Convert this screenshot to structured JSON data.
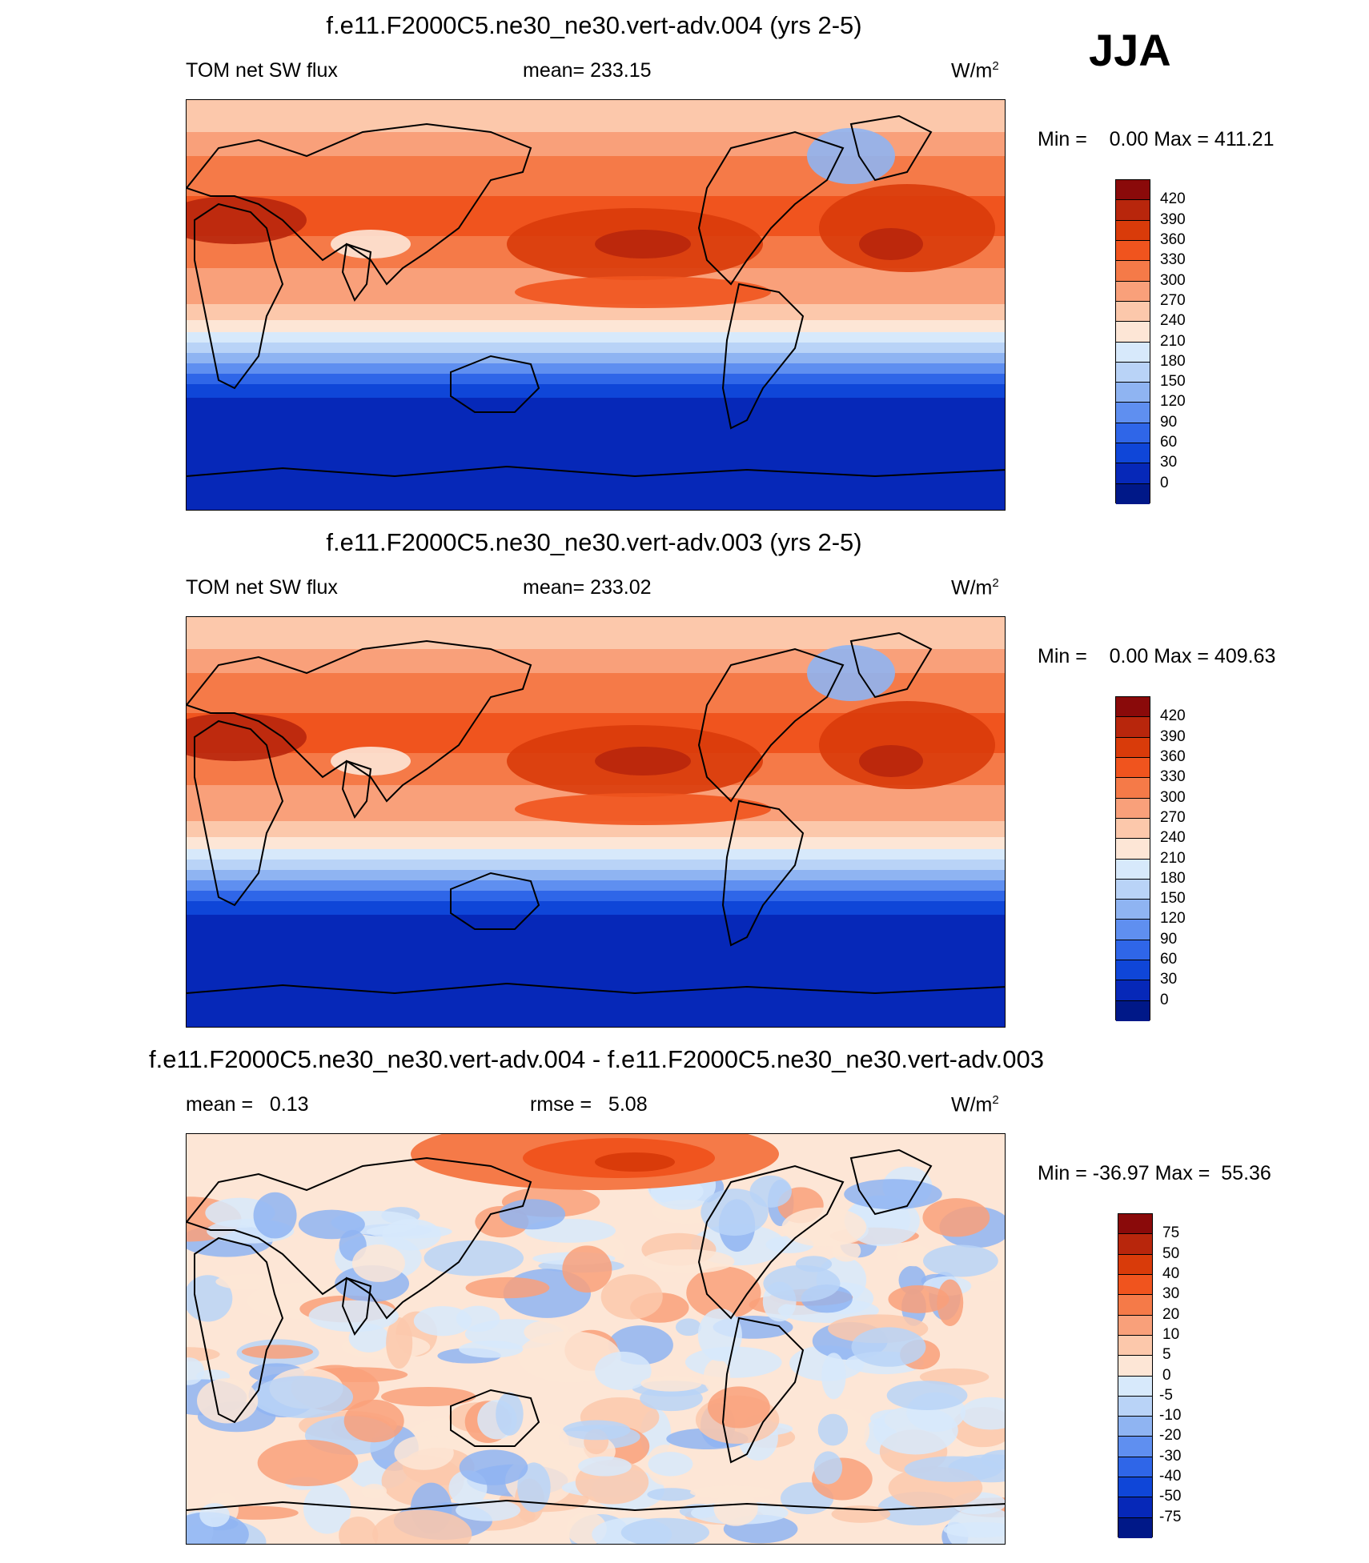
{
  "season": "JJA",
  "panels": [
    {
      "title": "f.e11.F2000C5.ne30_ne30.vert-adv.004 (yrs 2-5)",
      "left": "TOM net SW flux",
      "center": "mean= 233.15",
      "units": "W/m",
      "units_sup": "2",
      "minmax": "Min =    0.00 Max = 411.21",
      "kind": "abs"
    },
    {
      "title": "f.e11.F2000C5.ne30_ne30.vert-adv.003 (yrs 2-5)",
      "left": "TOM net SW flux",
      "center": "mean= 233.02",
      "units": "W/m",
      "units_sup": "2",
      "minmax": "Min =    0.00 Max = 409.63",
      "kind": "abs"
    },
    {
      "title": "f.e11.F2000C5.ne30_ne30.vert-adv.004 - f.e11.F2000C5.ne30_ne30.vert-adv.003",
      "left": "mean =   0.13",
      "center": "rmse =   5.08",
      "units": "W/m",
      "units_sup": "2",
      "minmax": "Min = -36.97 Max =  55.36",
      "kind": "diff"
    }
  ],
  "colorbar_abs": {
    "labels": [
      "420",
      "390",
      "360",
      "330",
      "300",
      "270",
      "240",
      "210",
      "180",
      "150",
      "120",
      "90",
      "60",
      "30",
      "0"
    ],
    "colors": [
      "#8a0a0a",
      "#b8260c",
      "#d93b0a",
      "#f0541e",
      "#f57a48",
      "#f9a07a",
      "#fcc8ab",
      "#fde6d6",
      "#d7e9fb",
      "#b9d3f7",
      "#8fb4f2",
      "#5f8ff0",
      "#2f66e8",
      "#0f46d8",
      "#0628b8",
      "#001888"
    ]
  },
  "colorbar_diff": {
    "labels": [
      "75",
      "50",
      "40",
      "30",
      "20",
      "10",
      "5",
      "0",
      "-5",
      "-10",
      "-20",
      "-30",
      "-40",
      "-50",
      "-75"
    ],
    "colors": [
      "#8a0a0a",
      "#b8260c",
      "#d93b0a",
      "#f0541e",
      "#f57a48",
      "#f9a07a",
      "#fcc8ab",
      "#fde6d6",
      "#d7e9fb",
      "#b9d3f7",
      "#8fb4f2",
      "#5f8ff0",
      "#2f66e8",
      "#0f46d8",
      "#0628b8",
      "#001888"
    ]
  }
}
